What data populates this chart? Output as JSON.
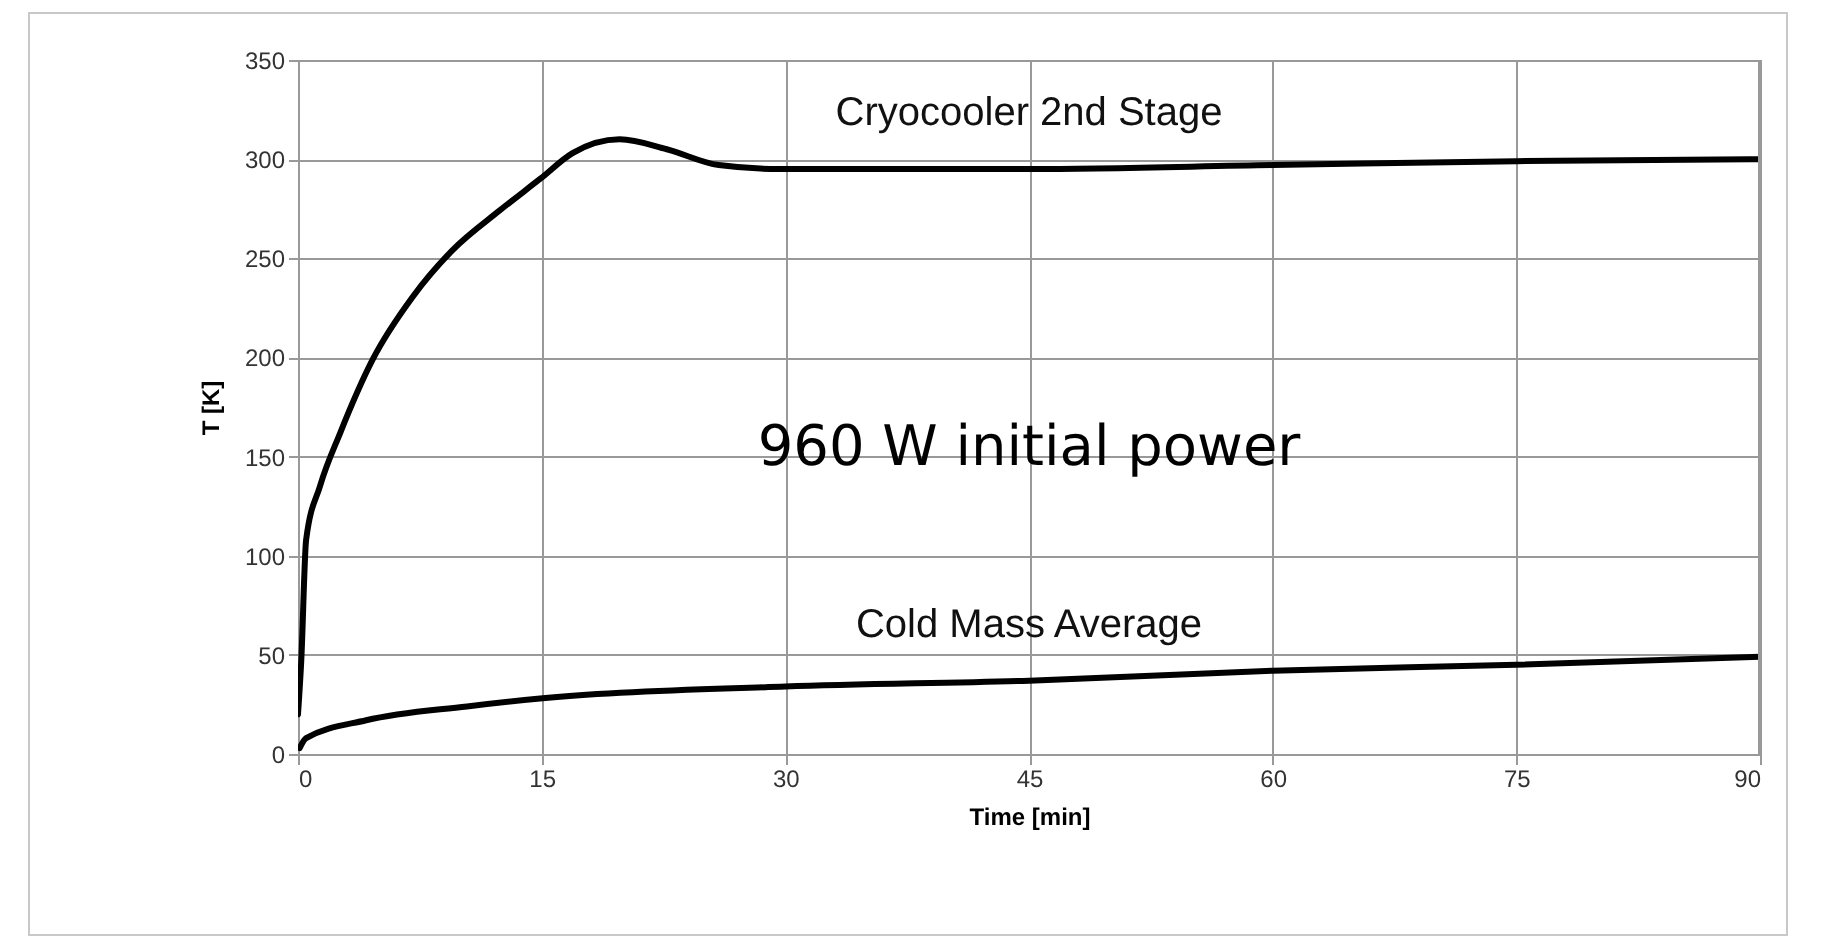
{
  "chart_data": {
    "type": "line",
    "xlabel": "Time [min]",
    "ylabel": "T [K]",
    "xlim": [
      0,
      90
    ],
    "xticks": [
      0,
      15,
      30,
      45,
      60,
      75,
      90
    ],
    "ylim": [
      0,
      350
    ],
    "yticks": [
      0,
      50,
      100,
      150,
      200,
      250,
      300,
      350
    ],
    "grid": true,
    "legend": false,
    "line_style": "solid",
    "marker": "none",
    "annotations": [
      "960 W initial power"
    ],
    "series": [
      {
        "name": "Cryocooler 2nd Stage",
        "color": "#000000",
        "x": [
          0,
          0.2,
          0.5,
          1.35,
          2.6,
          4.6,
          7.1,
          9.5,
          12.4,
          14.9,
          16.9,
          19.8,
          22.7,
          25.9,
          29.6,
          45,
          60,
          75,
          90
        ],
        "values": [
          20,
          47,
          108,
          135,
          162,
          199,
          231,
          254,
          274,
          290,
          303,
          310,
          305,
          297,
          295,
          295,
          297,
          299,
          300
        ]
      },
      {
        "name": "Cold Mass Average",
        "color": "#000000",
        "x": [
          0.1,
          0.5,
          4.2,
          10.4,
          14.9,
          30,
          45,
          60,
          75,
          90
        ],
        "values": [
          3,
          8,
          17,
          24,
          28,
          34,
          37,
          42,
          45,
          49
        ]
      }
    ]
  }
}
